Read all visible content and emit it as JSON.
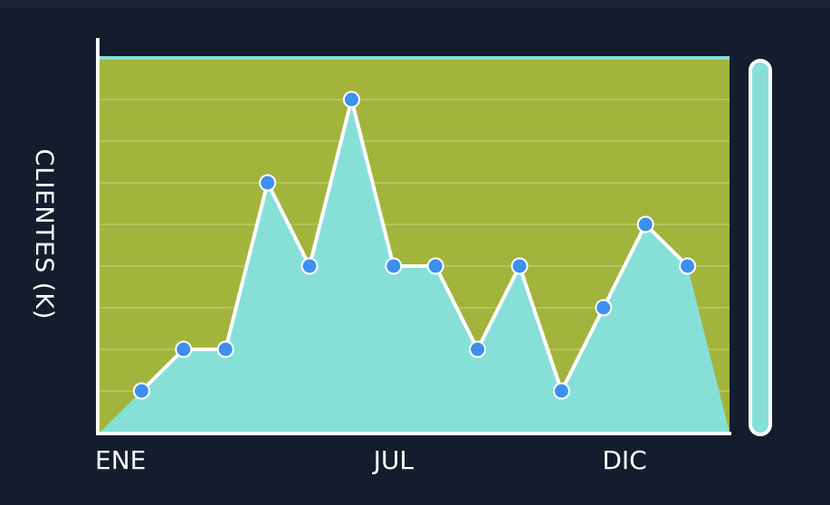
{
  "chart_data": {
    "type": "area",
    "title": "",
    "ylabel": "CLIENTES (K)",
    "xlabel": "",
    "x_tick_labels": [
      {
        "text": "ENE",
        "x": 0.5
      },
      {
        "text": "JUL",
        "x": 7.0
      },
      {
        "text": "DIC",
        "x": 12.5
      }
    ],
    "xlim": [
      0,
      15
    ],
    "ylim": [
      0,
      9
    ],
    "grid": true,
    "points": [
      {
        "x": 0,
        "y": 0
      },
      {
        "x": 1,
        "y": 1
      },
      {
        "x": 2,
        "y": 2
      },
      {
        "x": 3,
        "y": 2
      },
      {
        "x": 4,
        "y": 6
      },
      {
        "x": 5,
        "y": 4
      },
      {
        "x": 6,
        "y": 8
      },
      {
        "x": 7,
        "y": 4
      },
      {
        "x": 8,
        "y": 4
      },
      {
        "x": 9,
        "y": 2
      },
      {
        "x": 10,
        "y": 4
      },
      {
        "x": 11,
        "y": 1
      },
      {
        "x": 12,
        "y": 3
      },
      {
        "x": 13,
        "y": 5
      },
      {
        "x": 14,
        "y": 4
      },
      {
        "x": 15,
        "y": 0
      }
    ],
    "colors": {
      "background": "#141d2d",
      "plot_background": "#a2b43c",
      "area_fill": "#86e0d8",
      "line": "#ffffff",
      "marker": "#3d8ff0",
      "axis": "#ffffff",
      "scrollbar": "#86e0d8"
    }
  }
}
